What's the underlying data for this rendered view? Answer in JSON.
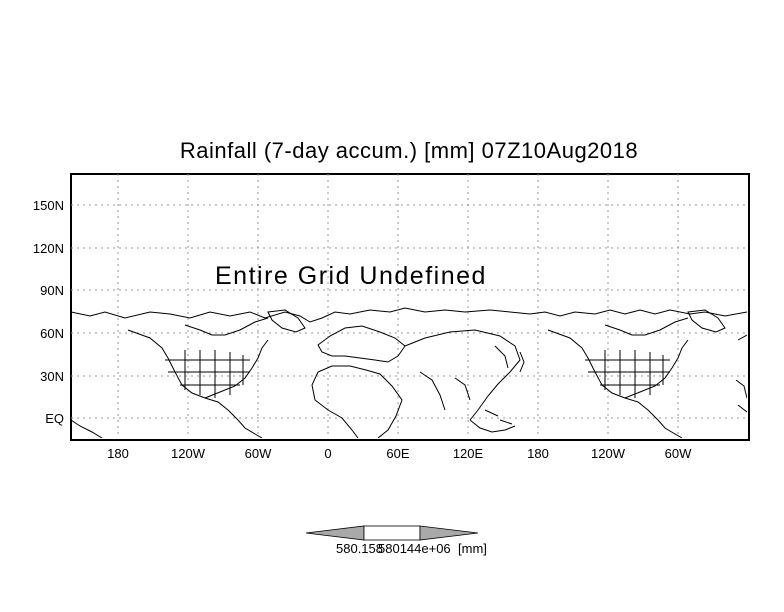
{
  "title": "Rainfall (7-day accum.) [mm] 07Z10Aug2018",
  "annotation": "Entire Grid Undefined",
  "y_ticks": [
    "150N",
    "120N",
    "90N",
    "60N",
    "30N",
    "EQ"
  ],
  "x_ticks": [
    "180",
    "120W",
    "60W",
    "0",
    "60E",
    "120E",
    "180",
    "120W",
    "60W"
  ],
  "colorbar": {
    "label_left": "580.158",
    "label_mid": "580144e+06",
    "label_unit": "[mm]",
    "fill": "#a9a9a9"
  },
  "colors": {
    "coast": "#000000",
    "grid": "#999999"
  }
}
